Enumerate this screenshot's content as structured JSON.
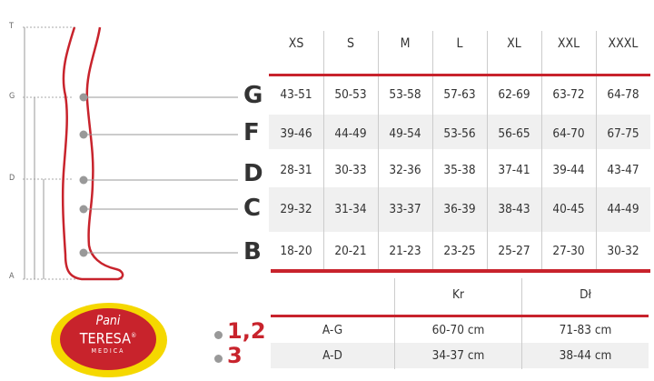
{
  "figure": {
    "scale_labels": [
      "T",
      "G",
      "D",
      "A"
    ],
    "point_letters": [
      "G",
      "F",
      "D",
      "C",
      "B"
    ]
  },
  "size_table": {
    "columns": [
      "XS",
      "S",
      "M",
      "L",
      "XL",
      "XXL",
      "XXXL"
    ],
    "rows": [
      {
        "point": "G",
        "values": [
          "43-51",
          "50-53",
          "53-58",
          "57-63",
          "62-69",
          "63-72",
          "64-78"
        ]
      },
      {
        "point": "F",
        "values": [
          "39-46",
          "44-49",
          "49-54",
          "53-56",
          "56-65",
          "64-70",
          "67-75"
        ]
      },
      {
        "point": "D",
        "values": [
          "28-31",
          "30-33",
          "32-36",
          "35-38",
          "37-41",
          "39-44",
          "43-47"
        ]
      },
      {
        "point": "C",
        "values": [
          "29-32",
          "31-34",
          "33-37",
          "36-39",
          "38-43",
          "40-45",
          "44-49"
        ]
      },
      {
        "point": "B",
        "values": [
          "18-20",
          "20-21",
          "21-23",
          "23-25",
          "25-27",
          "27-30",
          "30-32"
        ]
      }
    ]
  },
  "length_table": {
    "columns": [
      "",
      "Kr",
      "Dł"
    ],
    "rows": [
      {
        "marker": "1,2",
        "label": "A-G",
        "values": [
          "60-70 cm",
          "71-83 cm"
        ]
      },
      {
        "marker": "3",
        "label": "A-D",
        "values": [
          "34-37 cm",
          "38-44 cm"
        ]
      }
    ]
  },
  "logo": {
    "line1": "Pani",
    "line2": "TERESA",
    "line3": "MEDICA",
    "mark": "®"
  },
  "colors": {
    "accent": "#c8232c",
    "logo_yellow": "#f5d800",
    "text": "#333333",
    "shade": "#f0f0f0"
  }
}
